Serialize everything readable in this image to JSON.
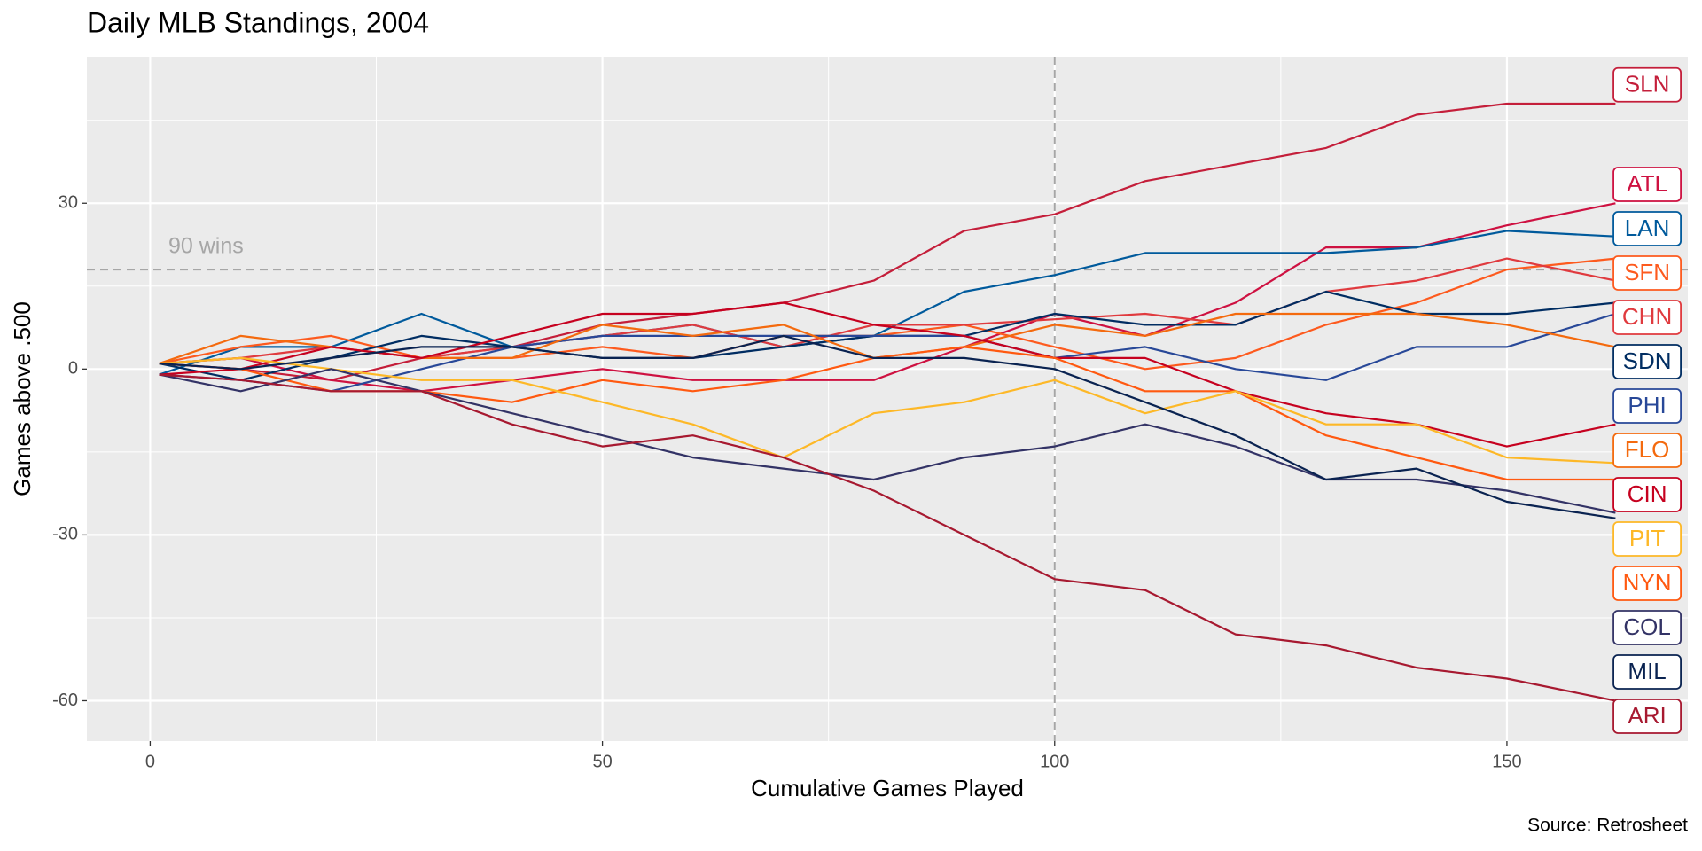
{
  "chart_data": {
    "type": "line",
    "title": "Daily MLB Standings, 2004",
    "xlabel": "Cumulative Games Played",
    "ylabel": "Games above .500",
    "source": "Source: Retrosheet",
    "annotation": "90 wins",
    "hline": 18,
    "vline": 100,
    "xlim": [
      -7,
      170
    ],
    "ylim": [
      -67.3,
      56.5
    ],
    "xticks": [
      0,
      50,
      100,
      150
    ],
    "yticks": [
      -60,
      -30,
      0,
      30
    ],
    "xminor": [
      25,
      75,
      125
    ],
    "yminor": [
      -45,
      -15,
      15,
      45
    ],
    "grid": true,
    "x": [
      1,
      10,
      20,
      30,
      40,
      50,
      60,
      70,
      80,
      90,
      100,
      110,
      120,
      130,
      140,
      150,
      162
    ],
    "series": [
      {
        "name": "SLN",
        "color": "#C41E3A",
        "values": [
          1,
          0,
          -2,
          2,
          4,
          8,
          10,
          12,
          16,
          25,
          28,
          34,
          37,
          40,
          46,
          48,
          48
        ]
      },
      {
        "name": "ATL",
        "color": "#CE1141",
        "values": [
          1,
          2,
          -2,
          -4,
          -2,
          0,
          -2,
          -2,
          -2,
          4,
          10,
          6,
          12,
          22,
          22,
          26,
          30
        ]
      },
      {
        "name": "LAN",
        "color": "#005A9C",
        "values": [
          -1,
          4,
          4,
          10,
          4,
          6,
          8,
          4,
          6,
          14,
          17,
          21,
          21,
          21,
          22,
          25,
          24
        ]
      },
      {
        "name": "SFN",
        "color": "#FD5A1E",
        "values": [
          1,
          4,
          6,
          2,
          2,
          4,
          2,
          6,
          6,
          8,
          4,
          0,
          2,
          8,
          12,
          18,
          20
        ]
      },
      {
        "name": "CHN",
        "color": "#E03A3E",
        "values": [
          1,
          2,
          4,
          2,
          4,
          6,
          8,
          4,
          8,
          8,
          9,
          10,
          8,
          14,
          16,
          20,
          16
        ]
      },
      {
        "name": "SDN",
        "color": "#002D62",
        "values": [
          1,
          -2,
          2,
          6,
          4,
          2,
          2,
          4,
          6,
          6,
          10,
          8,
          8,
          14,
          10,
          10,
          12
        ]
      },
      {
        "name": "PHI",
        "color": "#284898",
        "values": [
          -1,
          -2,
          -4,
          0,
          4,
          6,
          6,
          6,
          6,
          6,
          2,
          4,
          0,
          -2,
          4,
          4,
          10
        ]
      },
      {
        "name": "FLO",
        "color": "#F46A0E",
        "values": [
          1,
          6,
          4,
          2,
          2,
          8,
          6,
          8,
          2,
          4,
          8,
          6,
          10,
          10,
          10,
          8,
          4
        ]
      },
      {
        "name": "CIN",
        "color": "#C6011F",
        "values": [
          -1,
          0,
          4,
          2,
          6,
          10,
          10,
          12,
          8,
          6,
          2,
          2,
          -4,
          -8,
          -10,
          -14,
          -10
        ]
      },
      {
        "name": "NYN",
        "color": "#FF5910",
        "values": [
          1,
          0,
          -4,
          -4,
          -6,
          -2,
          -4,
          -2,
          2,
          4,
          2,
          -4,
          -4,
          -12,
          -16,
          -20,
          -20
        ]
      },
      {
        "name": "PIT",
        "color": "#FDB827",
        "values": [
          1,
          2,
          0,
          -2,
          -2,
          -6,
          -10,
          -16,
          -8,
          -6,
          -2,
          -8,
          -4,
          -10,
          -10,
          -16,
          -17
        ]
      },
      {
        "name": "COL",
        "color": "#333366",
        "values": [
          -1,
          -4,
          0,
          -4,
          -8,
          -12,
          -16,
          -18,
          -20,
          -16,
          -14,
          -10,
          -14,
          -20,
          -20,
          -22,
          -26
        ]
      },
      {
        "name": "MIL",
        "color": "#0A2351",
        "values": [
          1,
          0,
          2,
          4,
          4,
          2,
          2,
          6,
          2,
          2,
          0,
          -6,
          -12,
          -20,
          -18,
          -24,
          -27
        ]
      },
      {
        "name": "ARI",
        "color": "#A71930",
        "values": [
          -1,
          -2,
          -4,
          -4,
          -10,
          -14,
          -12,
          -16,
          -22,
          -30,
          -38,
          -40,
          -48,
          -50,
          -54,
          -56,
          -60
        ]
      }
    ]
  }
}
